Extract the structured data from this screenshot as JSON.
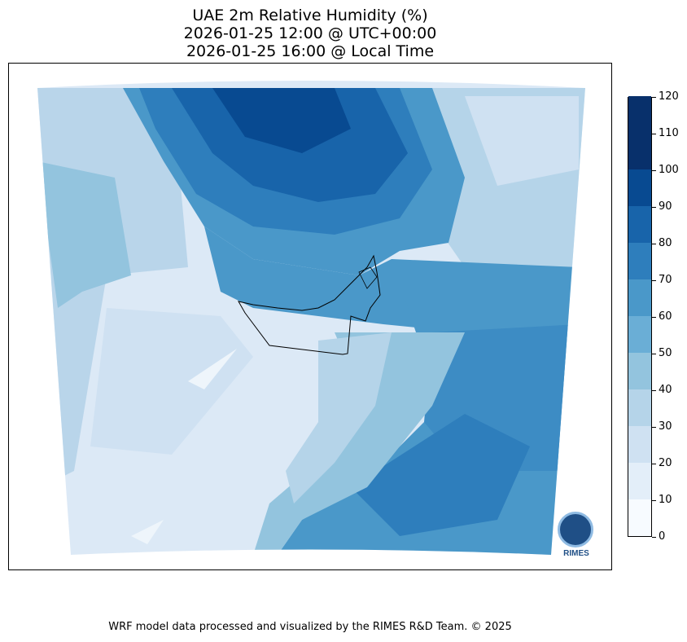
{
  "title": {
    "line1": "UAE 2m Relative Humidity (%)",
    "line2": "2026-01-25 12:00 @ UTC+00:00",
    "line3": "2026-01-25 16:00 @ Local Time"
  },
  "map": {
    "region": "UAE",
    "field": "2m Relative Humidity",
    "projection_outline": "curved-top-edge",
    "borders_shown": [
      "United Arab Emirates"
    ]
  },
  "colorbar": {
    "ticks": [
      0,
      10,
      20,
      30,
      40,
      50,
      60,
      70,
      80,
      90,
      100,
      110,
      120
    ],
    "colors": [
      "#f7fbff",
      "#e3eef9",
      "#cfe1f2",
      "#b5d4e9",
      "#93c4de",
      "#6aaed6",
      "#4a98c9",
      "#2e7ebc",
      "#1864aa",
      "#084a91",
      "#08306b",
      "#08306b"
    ],
    "units": "%"
  },
  "logo": {
    "text": "RIMES",
    "ring_text": "Regional Integrated Multi-Hazard Early Warning System"
  },
  "footer": "WRF model data processed and visualized by the RIMES R&D Team. © 2025"
}
